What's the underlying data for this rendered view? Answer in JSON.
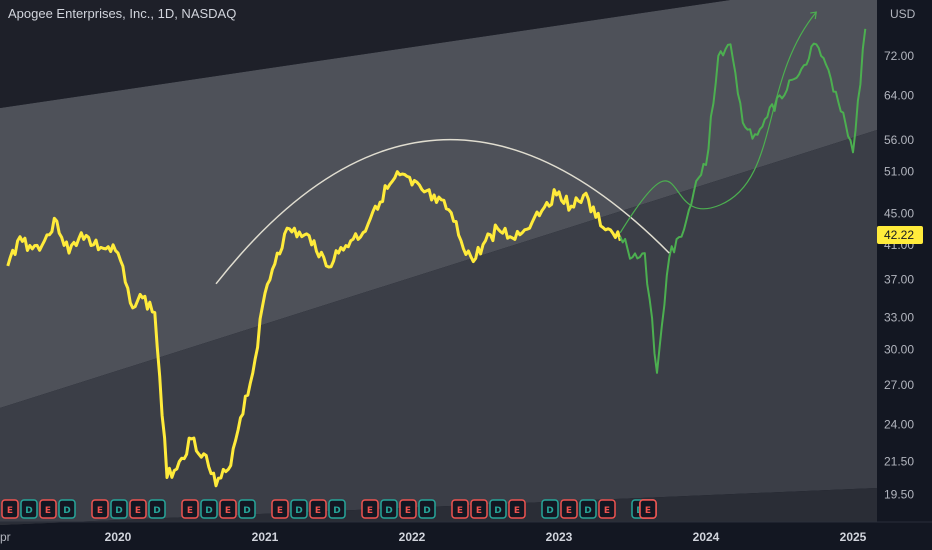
{
  "header": {
    "title": "Apogee Enterprises, Inc., 1D, NASDAQ"
  },
  "price_axis": {
    "currency": "USD",
    "ticks": [
      "72.00",
      "64.00",
      "56.00",
      "51.00",
      "45.00",
      "41.00",
      "37.00",
      "33.00",
      "30.00",
      "27.00",
      "24.00",
      "21.50",
      "19.50"
    ],
    "last_price_label": "42.22"
  },
  "time_axis": {
    "left_clip_label": "pr",
    "labels": [
      "2020",
      "2021",
      "2022",
      "2023",
      "2024",
      "2025"
    ]
  },
  "colors": {
    "background": "#131722",
    "band_dark": "#2a2d36",
    "band_mid": "#3b3e47",
    "band_light": "#4e5159",
    "history_line": "#ffeb3b",
    "projection_line": "#4caf50",
    "arc": "#e0ddd0",
    "event_earnings": "#ef5350",
    "event_dividend": "#26a69a",
    "event_split": "#2962ff"
  },
  "event_markers": [
    "E",
    "D",
    "E",
    "D",
    "E",
    "D",
    "E",
    "D",
    "E",
    "D",
    "E",
    "D",
    "E",
    "D",
    "E",
    "D",
    "E",
    "D",
    "E",
    "D",
    "E",
    "E",
    "D",
    "E",
    "D",
    "E",
    "D",
    "E",
    "D",
    "E",
    "D",
    "E",
    "E"
  ],
  "chart_data": {
    "type": "line",
    "title": "Apogee Enterprises, Inc., 1D, NASDAQ",
    "y_scale": "log",
    "ylim": [
      18.5,
      84
    ],
    "xlim": [
      "2019-04",
      "2025-02"
    ],
    "series": [
      {
        "x": [
          "2019-04",
          "2019-05",
          "2019-06",
          "2019-07",
          "2019-08",
          "2019-09",
          "2019-10",
          "2019-11",
          "2019-12",
          "2020-01",
          "2020-02",
          "2020-03",
          "2020-04",
          "2020-05",
          "2020-06",
          "2020-07",
          "2020-08",
          "2020-09",
          "2020-10",
          "2020-11",
          "2020-12",
          "2021-01",
          "2021-02",
          "2021-03",
          "2021-04",
          "2021-05",
          "2021-06",
          "2021-07",
          "2021-08",
          "2021-09",
          "2021-10",
          "2021-11",
          "2021-12",
          "2022-01",
          "2022-02",
          "2022-03",
          "2022-04",
          "2022-05",
          "2022-06",
          "2022-07",
          "2022-08",
          "2022-09",
          "2022-10",
          "2022-11",
          "2022-12",
          "2023-01",
          "2023-02",
          "2023-03",
          "2023-04",
          "2023-05",
          "2023-06"
        ],
        "values": [
          38.5,
          42.0,
          40.5,
          41.5,
          44.0,
          40.0,
          42.5,
          41.0,
          40.5,
          40.0,
          34.5,
          35.0,
          33.5,
          20.5,
          21.5,
          23.0,
          22.0,
          20.0,
          21.0,
          24.5,
          28.0,
          35.5,
          40.0,
          43.0,
          42.0,
          41.5,
          38.5,
          40.0,
          41.5,
          42.5,
          46.0,
          48.5,
          50.5,
          49.0,
          48.0,
          46.5,
          45.5,
          41.5,
          39.0,
          41.5,
          43.0,
          42.0,
          42.5,
          44.5,
          46.5,
          48.0,
          46.0,
          47.5,
          44.5,
          43.0,
          41.5
        ]
      },
      {
        "x": [
          "2023-06",
          "2023-07",
          "2023-08",
          "2023-09",
          "2023-10",
          "2023-11",
          "2023-12",
          "2024-01",
          "2024-02",
          "2024-03",
          "2024-04",
          "2024-05",
          "2024-06",
          "2024-07",
          "2024-08",
          "2024-09",
          "2024-10",
          "2024-11",
          "2024-12",
          "2025-01",
          "2025-02"
        ],
        "values": [
          42.0,
          39.5,
          40.0,
          28.0,
          39.5,
          42.0,
          48.0,
          52.0,
          72.0,
          74.5,
          59.0,
          57.0,
          60.0,
          64.0,
          67.0,
          70.0,
          74.5,
          69.0,
          61.0,
          54.0,
          78.0
        ]
      }
    ],
    "annotations": [
      {
        "type": "arc",
        "from": [
          "2020-09",
          36.5
        ],
        "peak": [
          "2022-03",
          56.0
        ],
        "to": [
          "2023-10",
          40.0
        ]
      },
      {
        "type": "arrow",
        "from": [
          "2023-06",
          42.5
        ],
        "to": [
          "2024-10",
          82.0
        ]
      }
    ]
  }
}
